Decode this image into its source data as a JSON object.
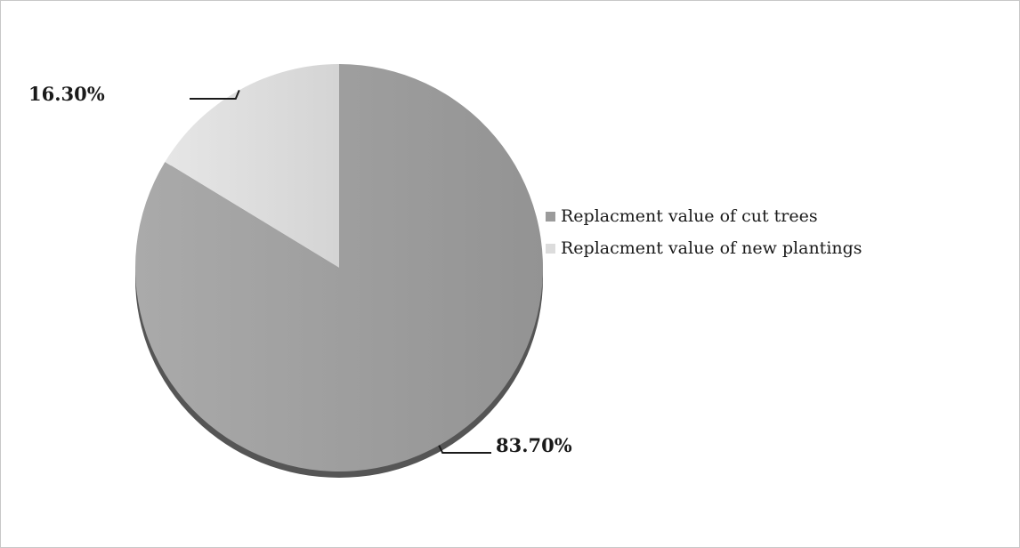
{
  "chart_data": {
    "type": "pie",
    "categories": [
      "Replacment value of cut trees",
      "Replacment value of new plantings"
    ],
    "values": [
      83.7,
      16.3
    ],
    "data_labels": [
      "83.70%",
      "16.30%"
    ],
    "colors": [
      "#9b9b9b",
      "#dcdcdc"
    ],
    "legend_position": "right"
  }
}
